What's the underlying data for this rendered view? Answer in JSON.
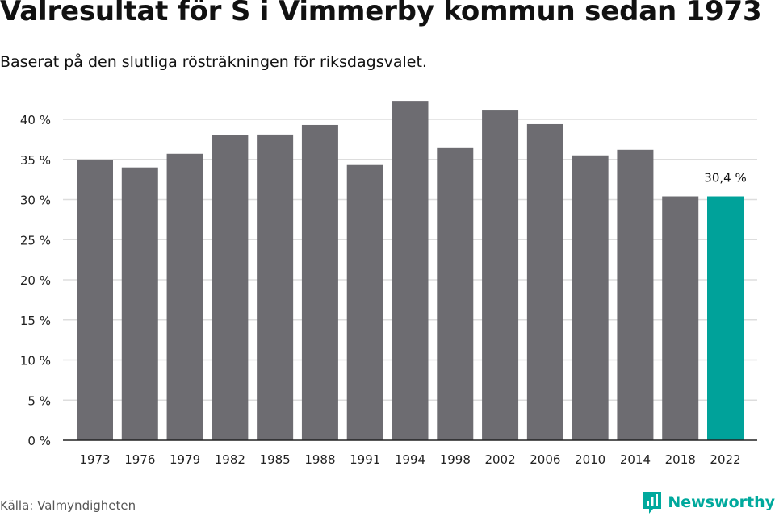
{
  "header": {
    "title": "Valresultat för S i Vimmerby kommun sedan 1973",
    "subtitle": "Baserat på den slutliga rösträkningen för riksdagsvalet."
  },
  "footer": {
    "source": "Källa: Valmyndigheten",
    "brand": "Newsworthy",
    "brand_icon": "newsworthy-logo-icon"
  },
  "colors": {
    "bar": "#6d6c71",
    "highlight": "#00a29a",
    "grid": "#dddddd",
    "axis": "#222222"
  },
  "chart_data": {
    "type": "bar",
    "categories": [
      "1973",
      "1976",
      "1979",
      "1982",
      "1985",
      "1988",
      "1991",
      "1994",
      "1998",
      "2002",
      "2006",
      "2010",
      "2014",
      "2018",
      "2022"
    ],
    "values": [
      34.9,
      34.0,
      35.7,
      38.0,
      38.1,
      39.3,
      34.3,
      42.3,
      36.5,
      41.1,
      39.4,
      35.5,
      36.2,
      30.4,
      30.4
    ],
    "highlight_index": 14,
    "annotation": "30,4 %",
    "ylim": [
      0,
      40
    ],
    "yticks": [
      0,
      5,
      10,
      15,
      20,
      25,
      30,
      35,
      40
    ],
    "ytick_labels": [
      "0 %",
      "5 %",
      "10 %",
      "15 %",
      "20 %",
      "25 %",
      "30 %",
      "35 %",
      "40 %"
    ],
    "grid": true,
    "xlabel": "",
    "ylabel": ""
  }
}
